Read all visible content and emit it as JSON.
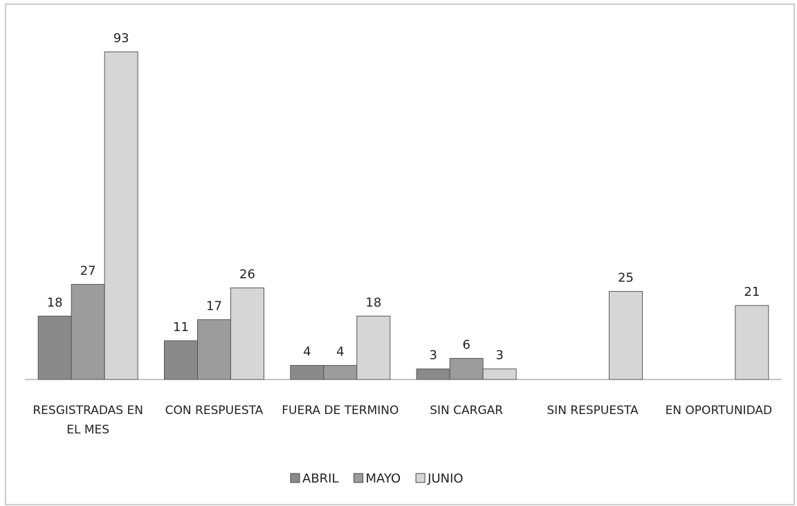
{
  "chart_data": {
    "type": "bar",
    "categories": [
      "RESGISTRADAS EN EL MES",
      "CON RESPUESTA",
      "FUERA DE TERMINO",
      "SIN CARGAR",
      "SIN RESPUESTA",
      "EN OPORTUNIDAD"
    ],
    "series": [
      {
        "name": "ABRIL",
        "color": "#8a8a8a",
        "values": [
          18,
          11,
          4,
          3,
          null,
          null
        ]
      },
      {
        "name": "MAYO",
        "color": "#9c9c9c",
        "values": [
          27,
          17,
          4,
          6,
          null,
          null
        ]
      },
      {
        "name": "JUNIO",
        "color": "#d6d6d6",
        "values": [
          93,
          26,
          18,
          3,
          25,
          21
        ]
      }
    ],
    "legend": "bottom"
  }
}
